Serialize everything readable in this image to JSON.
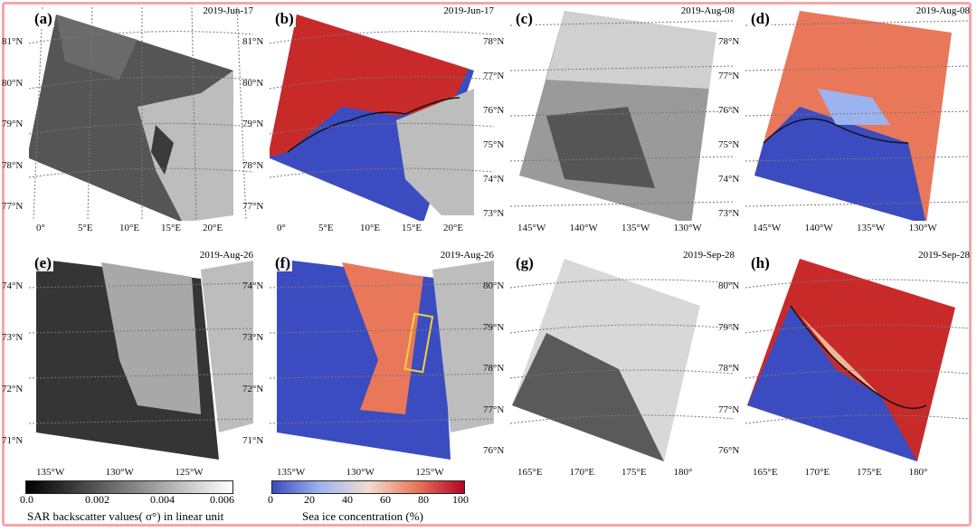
{
  "panels": [
    {
      "label": "(a)",
      "date": "2019-Jun-17",
      "kind": "sar",
      "lat_labels": [
        "81°N",
        "80°N",
        "79°N",
        "78°N",
        "77°N"
      ],
      "lon_labels": [
        "0°",
        "5°E",
        "10°E",
        "15°E",
        "20°E"
      ]
    },
    {
      "label": "(b)",
      "date": "2019-Jun-17",
      "kind": "sic",
      "lat_labels": [
        "81°N",
        "80°N",
        "79°N",
        "78°N",
        "77°N"
      ],
      "lon_labels": [
        "0°",
        "5°E",
        "10°E",
        "15°E",
        "20°E"
      ]
    },
    {
      "label": "(c)",
      "date": "2019-Aug-08",
      "kind": "sar",
      "lat_labels": [
        "78°N",
        "77°N",
        "76°N",
        "75°N",
        "74°N",
        "73°N"
      ],
      "lon_labels": [
        "145°W",
        "140°W",
        "135°W",
        "130°W"
      ]
    },
    {
      "label": "(d)",
      "date": "2019-Aug-08",
      "kind": "sic",
      "lat_labels": [
        "78°N",
        "77°N",
        "76°N",
        "75°N",
        "74°N",
        "73°N"
      ],
      "lon_labels": [
        "145°W",
        "140°W",
        "135°W",
        "130°W"
      ]
    },
    {
      "label": "(e)",
      "date": "2019-Aug-26",
      "kind": "sar",
      "lat_labels": [
        "74°N",
        "73°N",
        "72°N",
        "71°N"
      ],
      "lon_labels": [
        "135°W",
        "130°W",
        "125°W"
      ]
    },
    {
      "label": "(f)",
      "date": "2019-Aug-26",
      "kind": "sic",
      "lat_labels": [
        "74°N",
        "73°N",
        "72°N",
        "71°N"
      ],
      "lon_labels": [
        "135°W",
        "130°W",
        "125°W"
      ]
    },
    {
      "label": "(g)",
      "date": "2019-Sep-28",
      "kind": "sar",
      "lat_labels": [
        "80°N",
        "79°N",
        "78°N",
        "77°N",
        "76°N"
      ],
      "lon_labels": [
        "165°E",
        "170°E",
        "175°E",
        "180°"
      ]
    },
    {
      "label": "(h)",
      "date": "2019-Sep-28",
      "kind": "sic",
      "lat_labels": [
        "80°N",
        "79°N",
        "78°N",
        "77°N",
        "76°N"
      ],
      "lon_labels": [
        "165°E",
        "170°E",
        "175°E",
        "180°"
      ]
    }
  ],
  "colorbars": {
    "sar": {
      "ticks": [
        "0.0",
        "0.002",
        "0.004",
        "0.006"
      ],
      "title": "SAR backscatter values( σ°) in linear unit"
    },
    "sic": {
      "ticks": [
        "0",
        "20",
        "40",
        "60",
        "80",
        "100"
      ],
      "title": "Sea ice concentration (%)"
    }
  },
  "colors": {
    "land": "#bdbdbd",
    "ice_high": "#b40426",
    "ice_low": "#3b4cc0",
    "frame_border": "#f3a7a7",
    "highlight_box": "#f2d23a"
  }
}
